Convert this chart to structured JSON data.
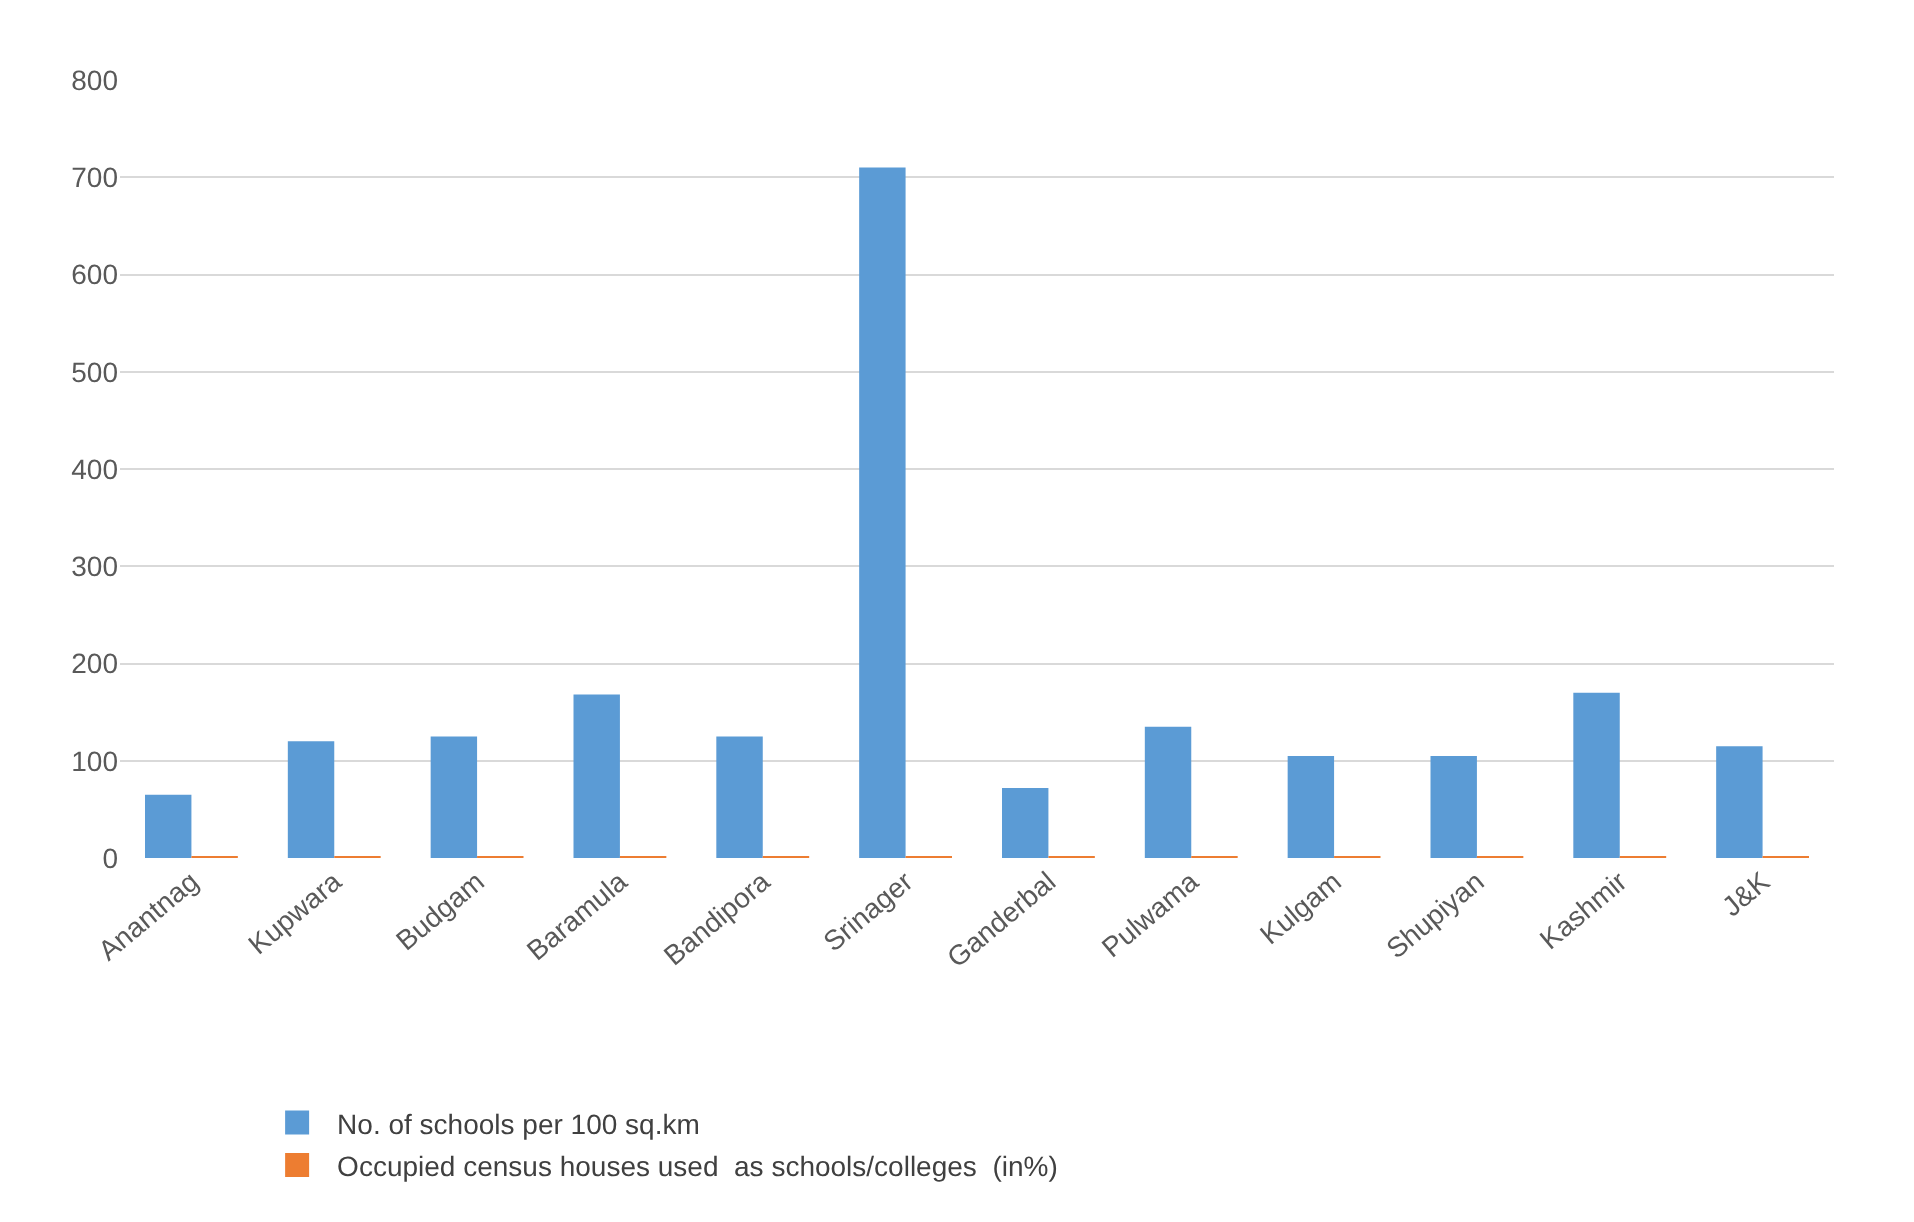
{
  "chart_data": {
    "type": "bar",
    "categories": [
      "Anantnag",
      "Kupwara",
      "Budgam",
      "Baramula",
      "Bandipora",
      "Srinager",
      "Ganderbal",
      "Pulwama",
      "Kulgam",
      "Shupiyan",
      "Kashmir",
      "J&K"
    ],
    "series": [
      {
        "name": "No. of schools per 100 sq.km",
        "color": "#5b9bd5",
        "values": [
          65,
          120,
          125,
          168,
          125,
          710,
          72,
          135,
          105,
          105,
          170,
          115
        ]
      },
      {
        "name": "Occupied census houses used  as schools/colleges  (in%)",
        "color": "#ed7d31",
        "values": [
          2,
          2,
          2,
          2,
          2,
          2,
          2,
          2,
          2,
          2,
          2,
          2
        ]
      }
    ],
    "ylim": [
      0,
      800
    ],
    "yticks": [
      0,
      100,
      200,
      300,
      400,
      500,
      600,
      700,
      800
    ],
    "grid": "y",
    "legend": "bottom"
  }
}
